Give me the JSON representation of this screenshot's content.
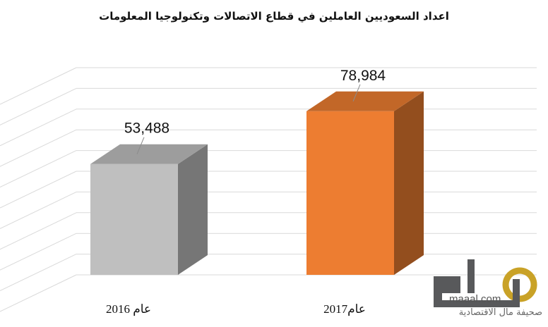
{
  "chart_data": {
    "type": "bar",
    "title": "اعداد السعوديين العاملين في قطاع الاتصالات وتكنولوجيا المعلومات",
    "categories": [
      "عام 2016",
      "عام2017"
    ],
    "values": [
      53488,
      78984
    ],
    "value_labels": [
      "53,488",
      "78,984"
    ],
    "colors": [
      "#bfbfbf",
      "#ed7d31"
    ],
    "ylim": [
      0,
      100000
    ],
    "grid": true,
    "style": "3d-column"
  },
  "branding": {
    "logo_text": "مال",
    "domain": "maaal.com",
    "tagline": "صحيفة مال الاقتصادية",
    "colors": {
      "gray": "#58595b",
      "gold": "#c9a227"
    }
  }
}
